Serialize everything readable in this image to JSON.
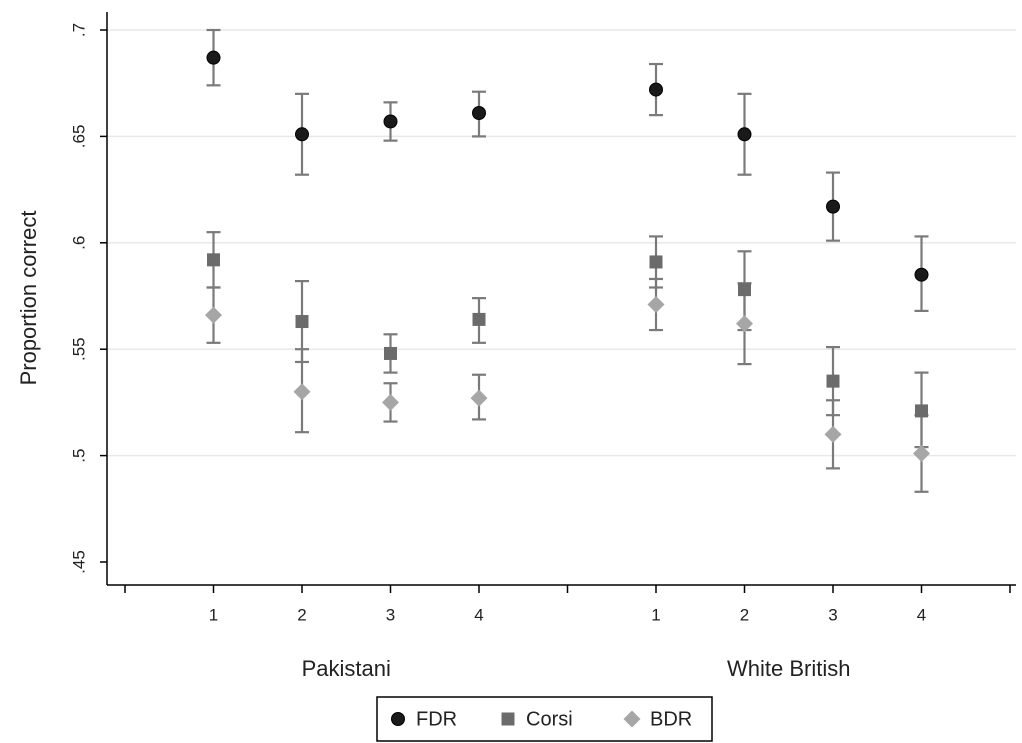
{
  "chart_data": {
    "type": "scatter",
    "ylabel": "Proportion correct",
    "ylim": [
      0.45,
      0.7
    ],
    "yticks": [
      0.45,
      0.5,
      0.55,
      0.6,
      0.65,
      0.7
    ],
    "ytick_labels": [
      ".45",
      ".5",
      ".55",
      ".6",
      ".65",
      ".7"
    ],
    "grid": "horizontal",
    "groups": [
      {
        "label": "Pakistani",
        "categories": [
          "1",
          "2",
          "3",
          "4"
        ]
      },
      {
        "label": "White British",
        "categories": [
          "1",
          "2",
          "3",
          "4"
        ]
      }
    ],
    "legend_position": "bottom",
    "series": [
      {
        "name": "FDR",
        "marker": "circle",
        "color": "#1a1a1a",
        "groups": [
          {
            "values": [
              0.687,
              0.651,
              0.657,
              0.661
            ],
            "lower": [
              0.674,
              0.632,
              0.648,
              0.65
            ],
            "upper": [
              0.7,
              0.67,
              0.666,
              0.671
            ]
          },
          {
            "values": [
              0.672,
              0.651,
              0.617,
              0.585
            ],
            "lower": [
              0.66,
              0.632,
              0.601,
              0.568
            ],
            "upper": [
              0.684,
              0.67,
              0.633,
              0.603
            ]
          }
        ]
      },
      {
        "name": "Corsi",
        "marker": "square",
        "color": "#6b6b6b",
        "groups": [
          {
            "values": [
              0.592,
              0.563,
              0.548,
              0.564
            ],
            "lower": [
              0.579,
              0.544,
              0.539,
              0.553
            ],
            "upper": [
              0.605,
              0.582,
              0.557,
              0.574
            ]
          },
          {
            "values": [
              0.591,
              0.578,
              0.535,
              0.521
            ],
            "lower": [
              0.579,
              0.559,
              0.519,
              0.504
            ],
            "upper": [
              0.603,
              0.596,
              0.551,
              0.539
            ]
          }
        ]
      },
      {
        "name": "BDR",
        "marker": "diamond",
        "color": "#a6a6a6",
        "groups": [
          {
            "values": [
              0.566,
              0.53,
              0.525,
              0.527
            ],
            "lower": [
              0.553,
              0.511,
              0.516,
              0.517
            ],
            "upper": [
              0.579,
              0.55,
              0.534,
              0.538
            ]
          },
          {
            "values": [
              0.571,
              0.562,
              0.51,
              0.501
            ],
            "lower": [
              0.559,
              0.543,
              0.494,
              0.483
            ],
            "upper": [
              0.583,
              0.581,
              0.526,
              0.519
            ]
          }
        ]
      }
    ]
  }
}
